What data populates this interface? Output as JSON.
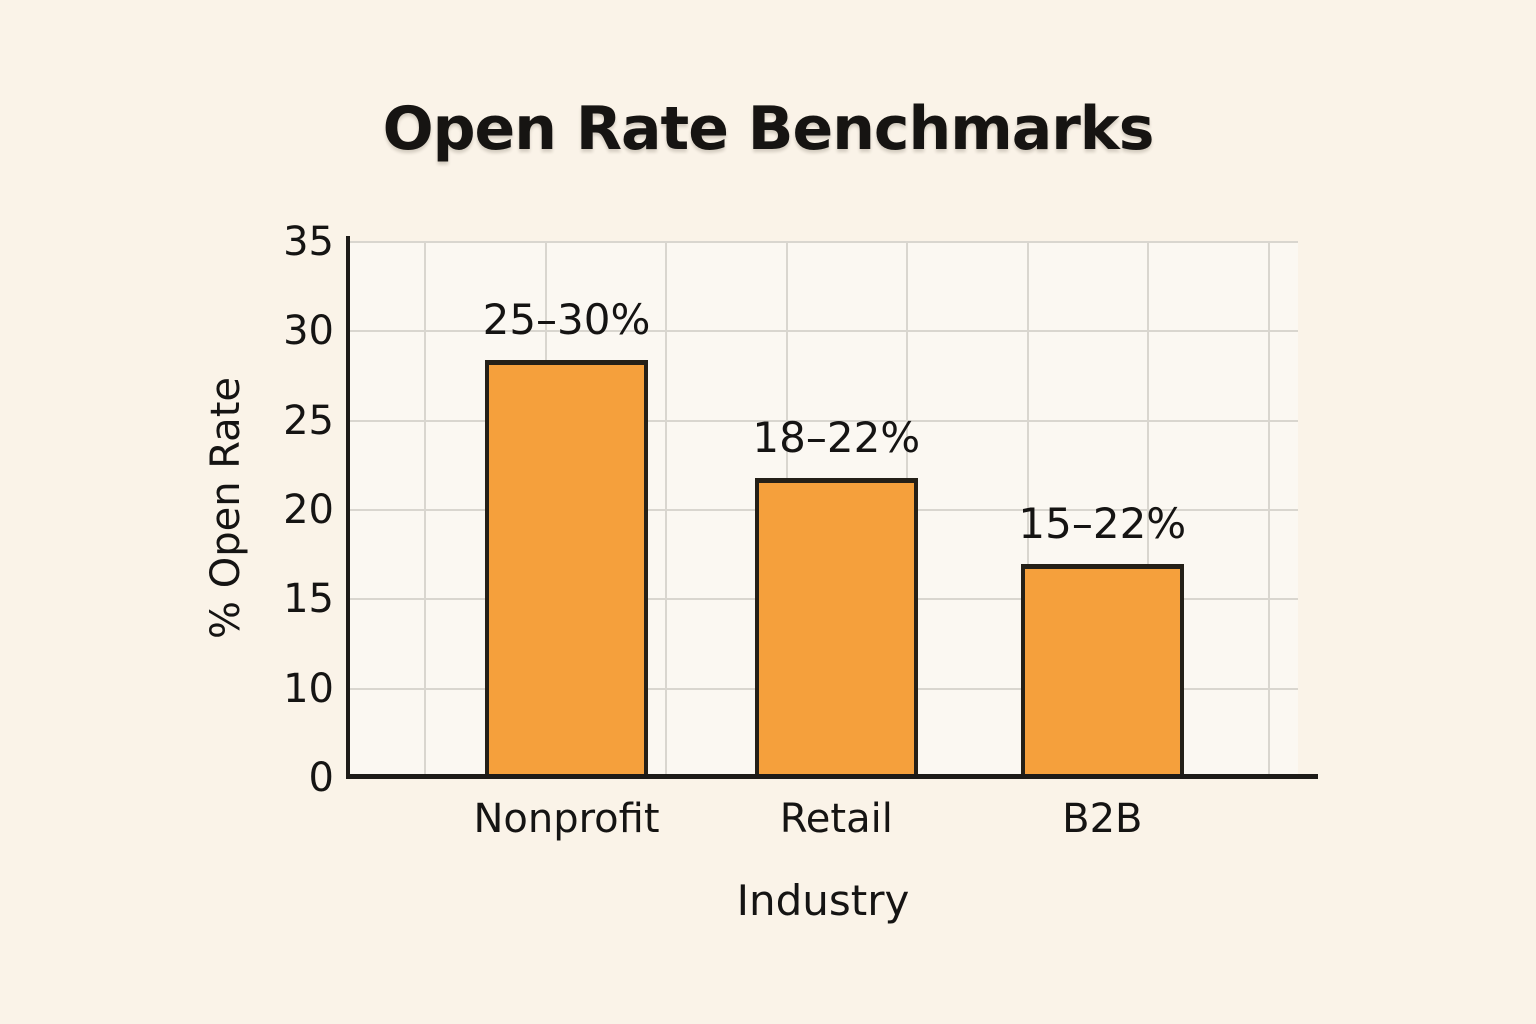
{
  "title": "Open Rate Benchmarks",
  "chart_data": {
    "type": "bar",
    "title": "Open Rate Benchmarks",
    "xlabel": "Industry",
    "ylabel": "% Open Rate",
    "categories": [
      "Nonprofit",
      "Retail",
      "B2B"
    ],
    "values": [
      28.4,
      21.8,
      17
    ],
    "bar_labels": [
      "25–30%",
      "18–22%",
      "15–22%"
    ],
    "y_ticks": [
      0,
      10,
      15,
      20,
      25,
      30,
      35
    ],
    "ylim": [
      0,
      35
    ],
    "grid": true,
    "legend": "none",
    "colors": {
      "bar_fill": "#f5a03c",
      "bar_border": "#242018",
      "background": "#faf3e8",
      "plot_background": "#fbf8f2",
      "gridline": "#d9d6cf",
      "axis": "#1d1b18",
      "text": "#151413"
    }
  }
}
